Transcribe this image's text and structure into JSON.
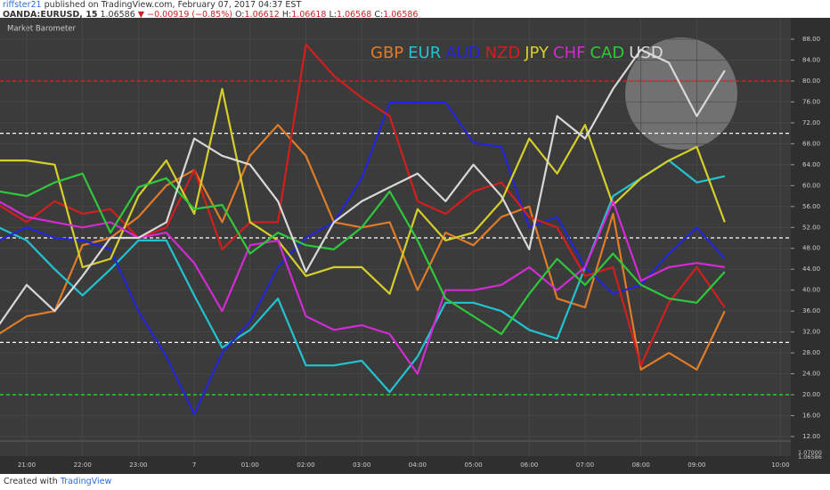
{
  "header": {
    "author": "riffster21",
    "published": "published on TradingView.com, February 07, 2017 04:37 EST",
    "symbol": "OANDA:EURUSD, 15",
    "price": "1.06586",
    "change": "▼ −0.00919 (−0.85%)",
    "open_label": "O:",
    "open": "1.06612",
    "high_label": "H:",
    "high": "1.06618",
    "low_label": "L:",
    "low": "1.06568",
    "close_label": "C:",
    "close": "1.06586"
  },
  "footer": {
    "created": "Created with",
    "brand": "TradingView"
  },
  "chart_data": {
    "type": "line",
    "title": "Market Barometer",
    "categories": [
      null,
      "21:00",
      null,
      "22:00",
      null,
      "23:00",
      null,
      "7",
      null,
      "01:00",
      null,
      "02:00",
      null,
      "03:00",
      null,
      "04:00",
      null,
      "05:00",
      null,
      "06:00",
      null,
      "07:00",
      null,
      "08:00",
      null,
      "09:00",
      null,
      null,
      "10:00"
    ],
    "ylim": [
      12,
      88
    ],
    "yticks": [
      {
        "value": 12,
        "label": "12.00"
      },
      {
        "value": 16,
        "label": "16.00"
      },
      {
        "value": 20,
        "label": "20.00"
      },
      {
        "value": 24,
        "label": "24.00"
      },
      {
        "value": 28,
        "label": "28.00"
      },
      {
        "value": 32,
        "label": "32.00"
      },
      {
        "value": 36,
        "label": "36.00"
      },
      {
        "value": 40,
        "label": "40.00"
      },
      {
        "value": 44,
        "label": "44.00"
      },
      {
        "value": 48,
        "label": "48.00"
      },
      {
        "value": 52,
        "label": "52.00"
      },
      {
        "value": 56,
        "label": "56.00"
      },
      {
        "value": 60,
        "label": "60.00"
      },
      {
        "value": 64,
        "label": "64.00"
      },
      {
        "value": 68,
        "label": "68.00"
      },
      {
        "value": 72,
        "label": "72.00"
      },
      {
        "value": 76,
        "label": "76.00"
      },
      {
        "value": 80,
        "label": "80.00"
      },
      {
        "value": 84,
        "label": "84.00"
      },
      {
        "value": 88,
        "label": "88.00"
      }
    ],
    "price_labels": [
      "1.07000",
      "1.06586"
    ],
    "grid": true,
    "hlines": [
      {
        "value": 80,
        "color": "#e02020"
      },
      {
        "value": 70,
        "color": "#ffffff"
      },
      {
        "value": 50,
        "color": "#ffffff"
      },
      {
        "value": 30,
        "color": "#ffffff"
      },
      {
        "value": 20,
        "color": "#22dd22"
      }
    ],
    "series": [
      {
        "name": "GBP",
        "color": "#e07b28",
        "values": [
          31.6,
          35,
          36,
          48.6,
          50,
          54,
          60,
          63,
          53,
          65.7,
          71.6,
          65.7,
          53,
          52,
          53,
          40,
          51,
          48.6,
          54,
          56,
          38.4,
          36.7,
          54.6,
          24.8,
          28,
          24.8,
          36,
          null,
          null
        ]
      },
      {
        "name": "EUR",
        "color": "#22c3d1",
        "values": [
          52,
          49.5,
          44,
          39,
          44,
          49.5,
          49.5,
          39,
          29,
          32.4,
          38.4,
          25.6,
          25.6,
          26.5,
          20.5,
          27.3,
          37.6,
          37.6,
          36,
          32.4,
          30.7,
          44.4,
          58,
          61.4,
          64.8,
          60.6,
          61.8,
          null,
          null
        ]
      },
      {
        "name": "AUD",
        "color": "#2326d6",
        "values": [
          49.5,
          52,
          50,
          49.5,
          47.8,
          36,
          27.3,
          16.3,
          28,
          34,
          44.4,
          50,
          53,
          61.4,
          75.9,
          75.9,
          75.9,
          68.2,
          67.4,
          52,
          54,
          44.4,
          39.3,
          41,
          47,
          52,
          46,
          null,
          null
        ]
      },
      {
        "name": "NZD",
        "color": "#d11e1e",
        "values": [
          56.3,
          53,
          57,
          54.6,
          55.5,
          50,
          52,
          63,
          47.8,
          53,
          53,
          87,
          81,
          76.8,
          73.3,
          57,
          54.6,
          58.9,
          60.6,
          54,
          52,
          42.7,
          44.4,
          25.6,
          37.6,
          44.4,
          36.7,
          null,
          null
        ]
      },
      {
        "name": "JPY",
        "color": "#d6cf2a",
        "values": [
          64.8,
          64.8,
          64,
          44.4,
          46,
          58,
          64.8,
          54.6,
          78.5,
          53,
          49.5,
          42.7,
          44.4,
          44.4,
          39.3,
          55.5,
          49.5,
          51,
          57,
          69,
          62.3,
          71.6,
          56.3,
          61.4,
          64.8,
          67.4,
          53,
          null,
          null
        ]
      },
      {
        "name": "CHF",
        "color": "#d22bd4",
        "values": [
          57,
          54,
          53,
          52,
          53,
          50,
          51,
          45.2,
          36,
          48.6,
          49.5,
          35,
          32.4,
          33.3,
          31.6,
          24,
          40,
          40,
          41,
          44.4,
          40,
          44.4,
          57,
          41.8,
          44.4,
          45.2,
          44.4,
          null,
          null
        ]
      },
      {
        "name": "CAD",
        "color": "#2ec93b",
        "values": [
          58.9,
          58,
          60.6,
          62.3,
          51,
          59.7,
          61.4,
          55.5,
          56.3,
          47,
          51,
          48.6,
          47.8,
          52,
          58.9,
          49.5,
          38.4,
          35,
          31.6,
          39.3,
          46,
          41,
          47,
          41,
          38.4,
          37.6,
          43.5,
          null,
          null
        ]
      },
      {
        "name": "USD",
        "color": "#d8d8d8",
        "values": [
          33.3,
          41,
          36,
          42.7,
          50,
          50,
          53,
          69,
          65.7,
          64,
          57,
          43.5,
          53,
          57,
          59.7,
          62.3,
          57,
          64,
          58,
          47.8,
          73.3,
          69,
          78.5,
          86,
          83.5,
          73.3,
          82,
          null,
          null
        ]
      }
    ]
  }
}
